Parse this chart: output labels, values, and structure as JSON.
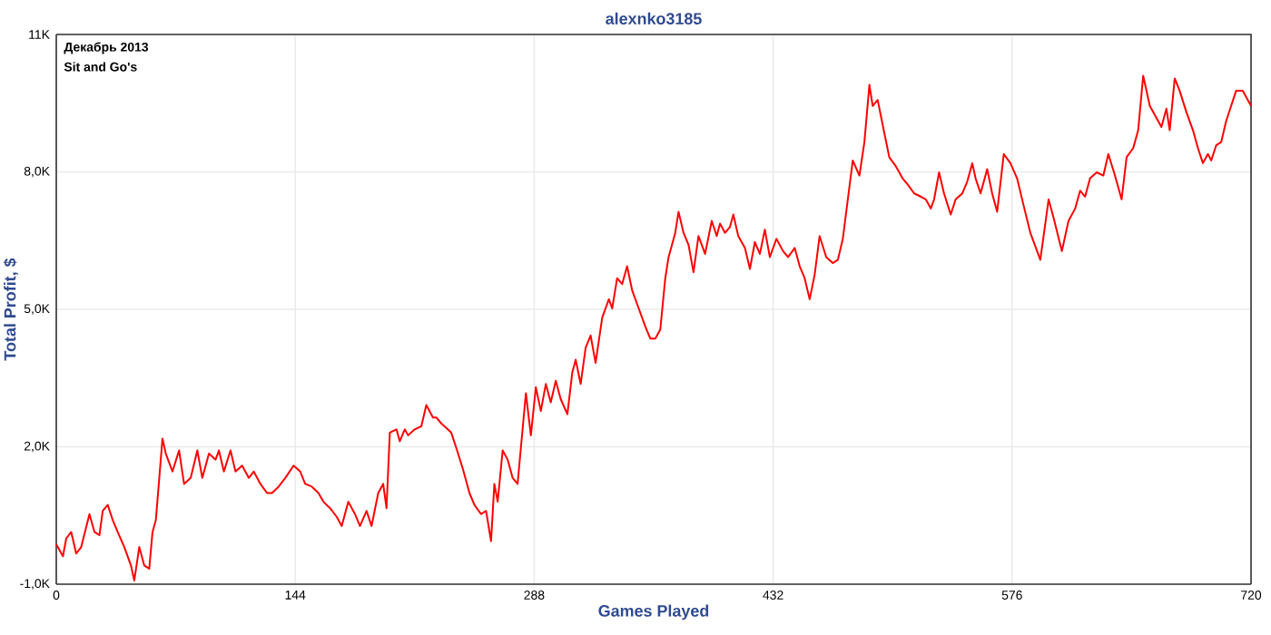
{
  "chart_data": {
    "type": "line",
    "title": "alexnko3185",
    "xlabel": "Games Played",
    "ylabel": "Total Profit, $",
    "annotations": [
      "Декабрь 2013",
      "Sit and Go's"
    ],
    "xlim": [
      0,
      720
    ],
    "ylim": [
      -1000,
      11000
    ],
    "xticks": [
      0,
      144,
      288,
      432,
      576,
      720
    ],
    "yticks": [
      {
        "value": -1000,
        "label": "-1,0K"
      },
      {
        "value": 2000,
        "label": "2,0K"
      },
      {
        "value": 5000,
        "label": "5,0K"
      },
      {
        "value": 8000,
        "label": "8,0K"
      },
      {
        "value": 11000,
        "label": "11K"
      }
    ],
    "grid": true,
    "x": [
      0,
      4,
      6,
      9,
      12,
      15,
      20,
      23,
      26,
      28,
      31,
      34,
      37,
      41,
      45,
      47,
      50,
      53,
      56,
      58,
      60,
      64,
      66,
      70,
      74,
      77,
      81,
      85,
      88,
      92,
      96,
      98,
      101,
      105,
      108,
      112,
      116,
      119,
      123,
      127,
      130,
      134,
      138,
      143,
      147,
      150,
      154,
      158,
      161,
      165,
      169,
      172,
      176,
      180,
      183,
      187,
      190,
      194,
      197,
      199,
      201,
      205,
      207,
      210,
      212,
      216,
      220,
      223,
      227,
      229,
      232,
      238,
      241,
      245,
      249,
      252,
      256,
      259,
      262,
      264,
      266,
      269,
      272,
      275,
      278,
      283,
      286,
      289,
      292,
      295,
      298,
      301,
      304,
      308,
      311,
      313,
      316,
      319,
      322,
      325,
      329,
      333,
      335,
      338,
      341,
      344,
      347,
      351,
      355,
      358,
      361,
      364,
      367,
      369,
      373,
      375,
      378,
      381,
      384,
      387,
      391,
      395,
      398,
      400,
      403,
      406,
      408,
      411,
      415,
      418,
      421,
      424,
      427,
      430,
      434,
      438,
      441,
      445,
      448,
      451,
      454,
      457,
      460,
      464,
      468,
      471,
      474,
      477,
      480,
      484,
      487,
      490,
      492,
      495,
      499,
      502,
      506,
      510,
      513,
      517,
      521,
      524,
      527,
      529,
      532,
      535,
      539,
      542,
      546,
      549,
      552,
      554,
      557,
      561,
      564,
      567,
      571,
      575,
      579,
      583,
      587,
      593,
      595,
      598,
      601,
      606,
      610,
      614,
      617,
      620,
      623,
      627,
      631,
      634,
      638,
      642,
      645,
      649,
      652,
      655,
      659,
      663,
      666,
      669,
      671,
      674,
      677,
      681,
      685,
      688,
      691,
      694,
      696,
      699,
      702,
      705,
      708,
      711,
      715,
      717,
      720
    ],
    "series": [
      {
        "color": "#ff0000",
        "values": [
          -130,
          -390,
          0,
          140,
          -330,
          -190,
          530,
          140,
          70,
          600,
          730,
          400,
          140,
          -190,
          -590,
          -920,
          -190,
          -590,
          -660,
          140,
          400,
          2180,
          1850,
          1460,
          1920,
          1190,
          1320,
          1920,
          1320,
          1850,
          1720,
          1920,
          1460,
          1920,
          1460,
          1590,
          1320,
          1460,
          1190,
          990,
          990,
          1130,
          1320,
          1590,
          1460,
          1190,
          1130,
          990,
          800,
          660,
          470,
          270,
          800,
          530,
          270,
          600,
          270,
          990,
          1190,
          660,
          2310,
          2380,
          2120,
          2380,
          2250,
          2380,
          2450,
          2910,
          2640,
          2640,
          2510,
          2310,
          1980,
          1520,
          990,
          730,
          530,
          600,
          -60,
          1190,
          800,
          1920,
          1720,
          1320,
          1190,
          3170,
          2250,
          3300,
          2780,
          3370,
          2970,
          3440,
          3040,
          2710,
          3630,
          3900,
          3370,
          4160,
          4430,
          3830,
          4820,
          5220,
          5020,
          5680,
          5550,
          5940,
          5420,
          5020,
          4620,
          4360,
          4360,
          4560,
          5680,
          6140,
          6670,
          7130,
          6670,
          6410,
          5810,
          6600,
          6210,
          6930,
          6600,
          6870,
          6670,
          6800,
          7070,
          6600,
          6340,
          5880,
          6470,
          6210,
          6740,
          6140,
          6540,
          6270,
          6140,
          6340,
          5940,
          5680,
          5220,
          5750,
          6600,
          6140,
          6010,
          6080,
          6540,
          7400,
          8250,
          7920,
          8650,
          9900,
          9440,
          9570,
          8850,
          8320,
          8120,
          7860,
          7730,
          7530,
          7460,
          7400,
          7200,
          7400,
          7990,
          7530,
          7070,
          7400,
          7530,
          7790,
          8190,
          7860,
          7530,
          8060,
          7530,
          7130,
          8390,
          8190,
          7860,
          7260,
          6670,
          6080,
          6600,
          7400,
          7000,
          6270,
          6930,
          7200,
          7590,
          7460,
          7860,
          7990,
          7920,
          8390,
          7920,
          7400,
          8320,
          8520,
          8910,
          10100,
          9440,
          9180,
          8980,
          9380,
          8910,
          10040,
          9770,
          9310,
          8910,
          8520,
          8190,
          8390,
          8250,
          8580,
          8650,
          9110,
          9440,
          9770,
          9770,
          9640,
          9440
        ]
      }
    ]
  }
}
